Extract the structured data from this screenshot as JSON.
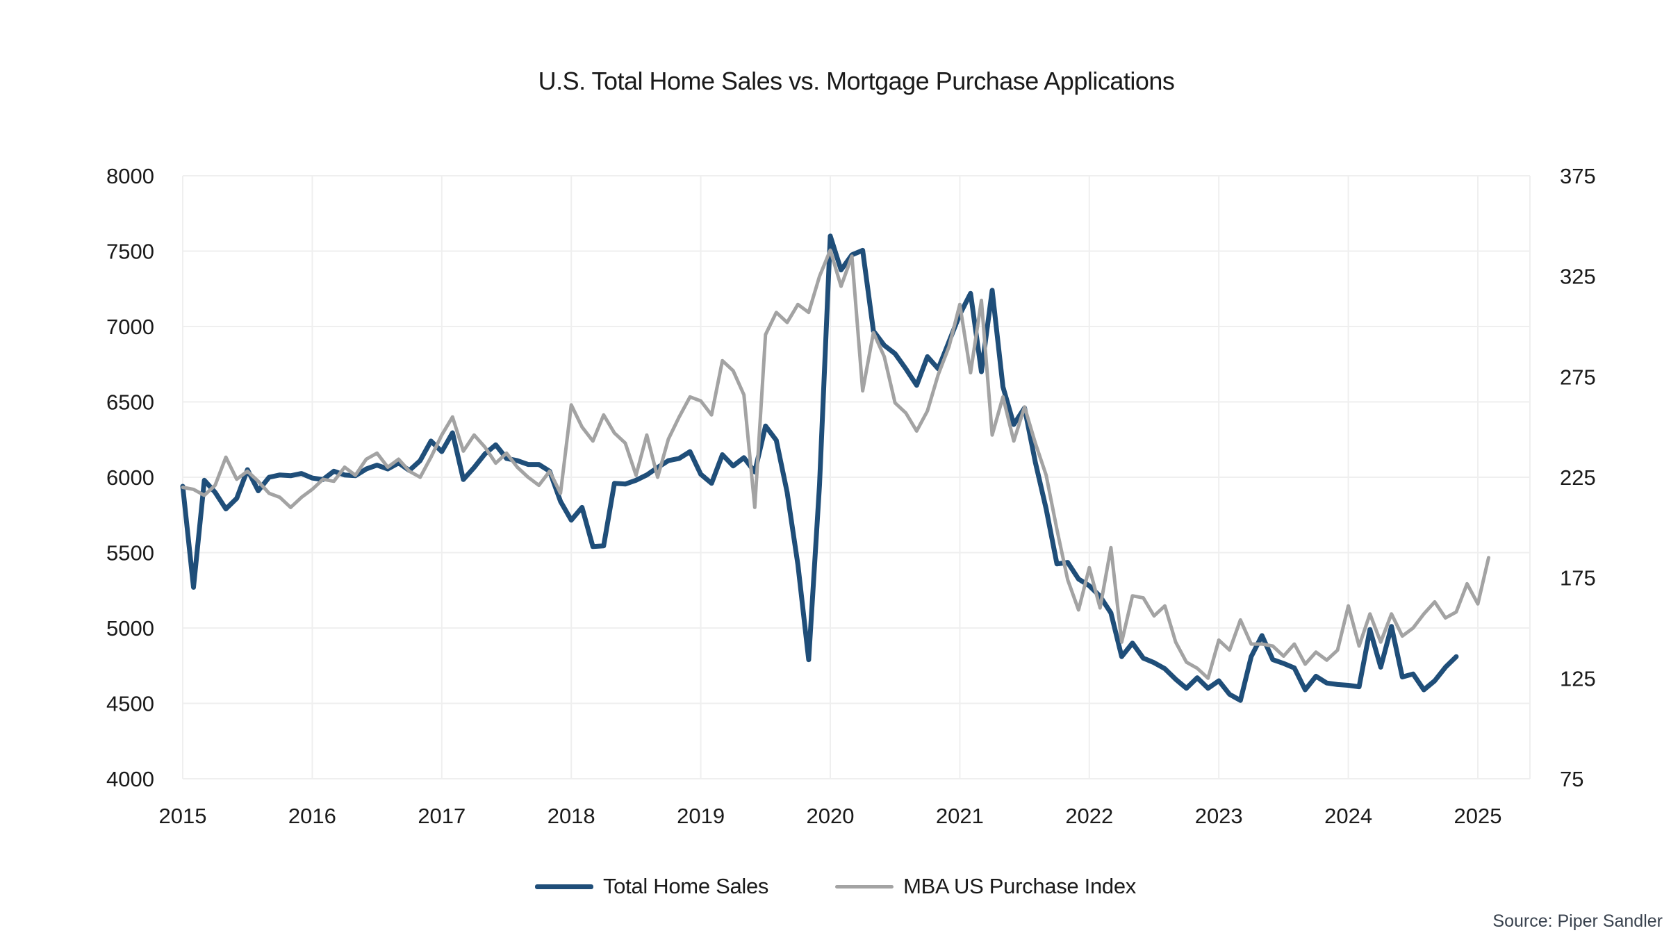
{
  "title": "U.S. Total Home Sales vs. Mortgage Purchase Applications",
  "source_note": "Source: Piper Sandler",
  "colors": {
    "home_sales_line": "#1F4E79",
    "mba_index_line": "#A3A3A3",
    "gridline": "#EFEFEF",
    "text": "#1a1a1a",
    "source_text": "#39424e",
    "background": "#ffffff"
  },
  "legend": {
    "items": [
      {
        "label": "Total Home Sales",
        "color": "#1F4E79",
        "thickness": 7
      },
      {
        "label": "MBA US Purchase Index",
        "color": "#A3A3A3",
        "thickness": 5
      }
    ]
  },
  "chart_data": {
    "type": "line",
    "title": "U.S. Total Home Sales vs. Mortgage Purchase Applications",
    "grid": true,
    "legend_position": "bottom-center",
    "x_axis": {
      "tick_labels": [
        "2015",
        "2016",
        "2017",
        "2018",
        "2019",
        "2020",
        "2021",
        "2022",
        "2023",
        "2024",
        "2025"
      ],
      "start": "2015-01",
      "frequency": "monthly",
      "overhang_years": 0.4
    },
    "left_axis": {
      "min": 4000,
      "max": 8000,
      "step": 500,
      "tick_labels": [
        "8000",
        "7500",
        "7000",
        "6500",
        "6000",
        "5500",
        "5000",
        "4500",
        "4000"
      ]
    },
    "right_axis": {
      "min": 75,
      "max": 375,
      "step": 50,
      "tick_labels": [
        "375",
        "325",
        "275",
        "225",
        "175",
        "125",
        "75"
      ]
    },
    "series": [
      {
        "name": "Total Home Sales",
        "axis": "left",
        "color": "#1F4E79",
        "width": 7,
        "start": "2015-01",
        "values": [
          5940,
          5270,
          5980,
          5900,
          5790,
          5860,
          6050,
          5910,
          6000,
          6015,
          6010,
          6025,
          5995,
          5985,
          6040,
          6015,
          6010,
          6055,
          6080,
          6055,
          6095,
          6045,
          6110,
          6240,
          6170,
          6295,
          5985,
          6065,
          6155,
          6215,
          6125,
          6110,
          6085,
          6085,
          6040,
          5840,
          5715,
          5800,
          5540,
          5545,
          5960,
          5955,
          5980,
          6015,
          6065,
          6110,
          6125,
          6170,
          6020,
          5960,
          6150,
          6075,
          6130,
          6035,
          6340,
          6245,
          5900,
          5420,
          4790,
          5950,
          7600,
          7375,
          7475,
          7505,
          6970,
          6875,
          6820,
          6720,
          6610,
          6800,
          6720,
          6900,
          7080,
          7220,
          6700,
          7240,
          6600,
          6350,
          6460,
          6100,
          5790,
          5425,
          5435,
          5325,
          5280,
          5210,
          5100,
          4810,
          4900,
          4800,
          4770,
          4730,
          4660,
          4600,
          4670,
          4600,
          4650,
          4560,
          4520,
          4810,
          4950,
          4790,
          4765,
          4735,
          4590,
          4680,
          4635,
          4625,
          4620,
          4610,
          4990,
          4740,
          5010,
          4675,
          4695,
          4590,
          4650,
          4740,
          4810
        ]
      },
      {
        "name": "MBA US Purchase Index",
        "axis": "right",
        "color": "#A3A3A3",
        "width": 5,
        "start": "2015-01",
        "values": [
          220,
          219,
          216,
          221,
          235,
          224,
          228,
          223,
          217,
          215,
          210,
          215,
          219,
          224,
          223,
          230,
          226,
          234,
          237,
          230,
          234,
          228,
          225,
          235,
          246,
          255,
          238,
          246,
          240,
          232,
          237,
          230,
          225,
          221,
          228,
          217,
          261,
          250,
          243,
          256,
          247,
          242,
          226,
          246,
          225,
          244,
          255,
          265,
          263,
          256,
          283,
          278,
          266,
          210,
          296,
          307,
          302,
          311,
          307,
          325,
          338,
          320,
          335,
          268,
          297,
          285,
          262,
          257,
          248,
          258,
          276,
          290,
          311,
          277,
          313,
          246,
          265,
          243,
          260,
          242,
          226,
          199,
          174,
          159,
          180,
          160,
          190,
          143,
          166,
          165,
          156,
          161,
          143,
          133,
          130,
          125,
          144,
          139,
          154,
          142,
          142,
          141,
          136,
          142,
          132,
          138,
          134,
          139,
          161,
          141,
          157,
          143,
          157,
          146,
          150,
          157,
          163,
          155,
          158,
          172,
          162,
          185
        ]
      }
    ]
  }
}
